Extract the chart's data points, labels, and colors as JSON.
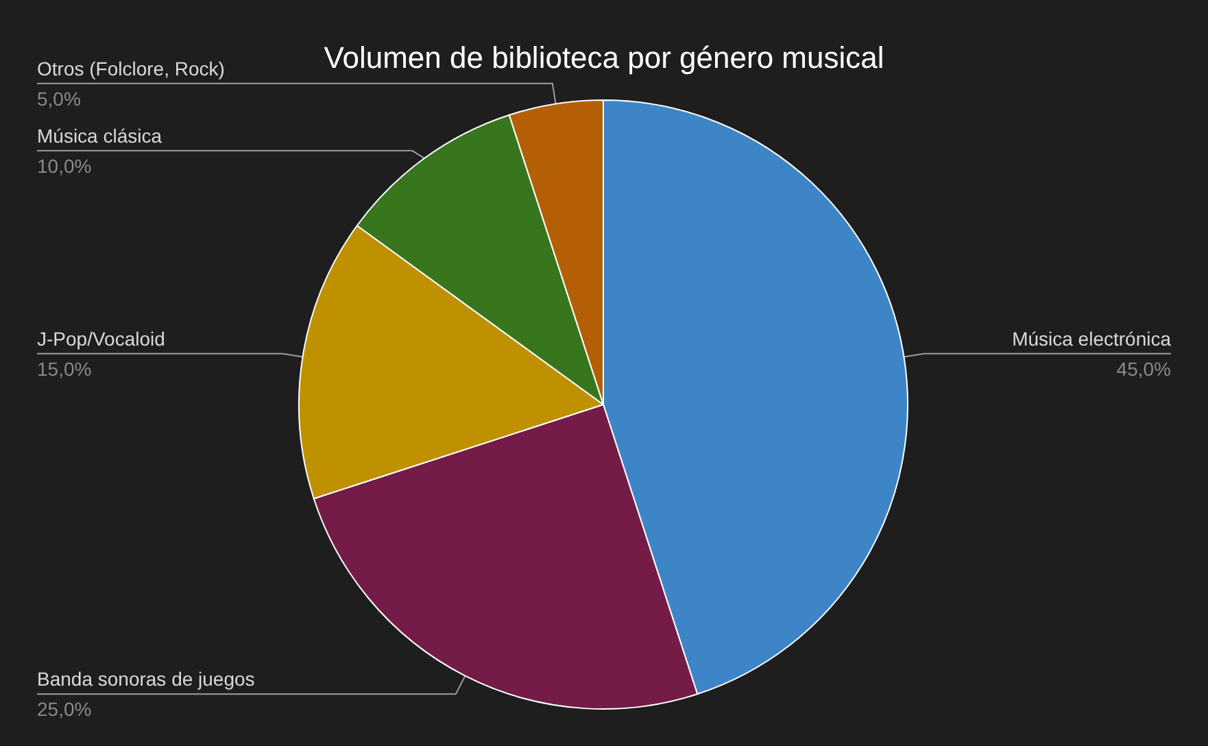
{
  "chart_data": {
    "type": "pie",
    "title": "Volumen de biblioteca por género musical",
    "categories": [
      "Música electrónica",
      "Banda sonoras de juegos",
      "J-Pop/Vocaloid",
      "Música clásica",
      "Otros (Folclore, Rock)"
    ],
    "values": [
      45,
      25,
      15,
      10,
      5
    ],
    "colors": [
      "#3d85c6",
      "#741b47",
      "#bf9000",
      "#38761d",
      "#b45f06"
    ],
    "value_labels": [
      "45,0%",
      "25,0%",
      "15,0%",
      "10,0%",
      "5,0%"
    ]
  }
}
